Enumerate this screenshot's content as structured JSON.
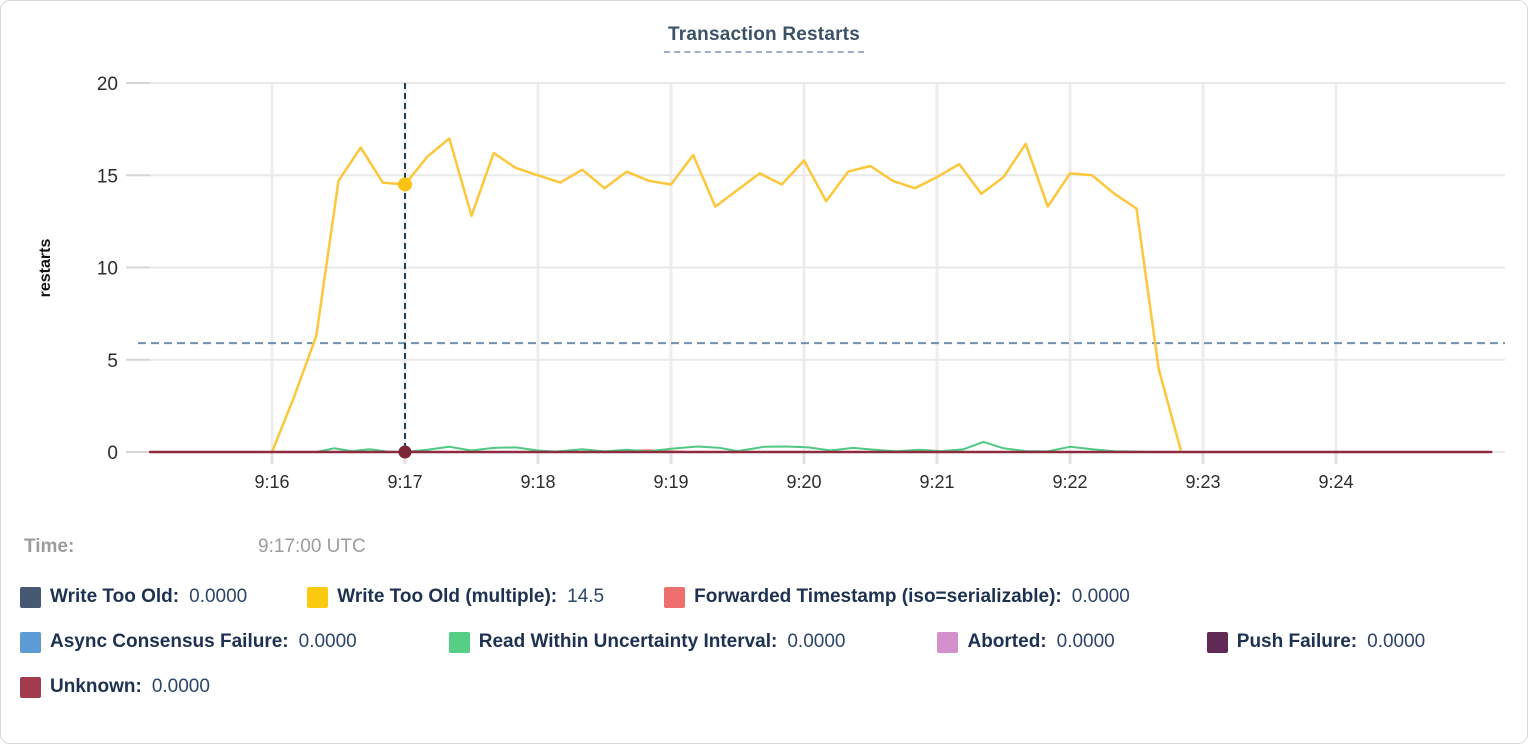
{
  "header": {
    "title": "Transaction Restarts"
  },
  "tooltip": {
    "time_label": "Time:",
    "time_value": "9:17:00 UTC"
  },
  "legend": {
    "rows": [
      [
        {
          "label": "Write Too Old:",
          "value": "0.0000",
          "color": "#475872"
        },
        {
          "label": "Write Too Old (multiple):",
          "value": "14.5",
          "color": "#fdca12"
        },
        {
          "label": "Forwarded Timestamp (iso=serializable):",
          "value": "0.0000",
          "color": "#ef6f6f"
        }
      ],
      [
        {
          "label": "Async Consensus Failure:",
          "value": "0.0000",
          "color": "#5c9bd3"
        },
        {
          "label": "Read Within Uncertainty Interval:",
          "value": "0.0000",
          "color": "#55ce86"
        },
        {
          "label": "Aborted:",
          "value": "0.0000",
          "color": "#d48fcd"
        },
        {
          "label": "Push Failure:",
          "value": "0.0000",
          "color": "#612a56"
        }
      ],
      [
        {
          "label": "Unknown:",
          "value": "0.0000",
          "color": "#a33b4f"
        }
      ]
    ]
  },
  "colors": {
    "title_text": "#3c5268",
    "axis_text": "#2d2d2d",
    "grid_horizontal": "#e9e9e9",
    "grid_vertical": "#ededed",
    "tick_stub": "#d6d6d6",
    "crosshair_vertical": "#1f4055",
    "crosshair_horizontal": "#7090b2",
    "legend_label": "#1d3150",
    "legend_value": "#2c4569",
    "time_text": "#9c9c9c"
  },
  "chart_data": {
    "type": "line",
    "title": "Transaction Restarts",
    "xlabel": "",
    "ylabel": "restarts",
    "ylim": [
      0,
      20
    ],
    "yticks": [
      0,
      5,
      10,
      15,
      20
    ],
    "x_unit": "seconds after 9:15:00 UTC",
    "x_window": [
      5,
      616
    ],
    "xticks": [
      {
        "label": "9:16",
        "t": 60
      },
      {
        "label": "9:17",
        "t": 120
      },
      {
        "label": "9:18",
        "t": 180
      },
      {
        "label": "9:19",
        "t": 240
      },
      {
        "label": "9:20",
        "t": 300
      },
      {
        "label": "9:21",
        "t": 360
      },
      {
        "label": "9:22",
        "t": 420
      },
      {
        "label": "9:23",
        "t": 480
      },
      {
        "label": "9:24",
        "t": 540
      }
    ],
    "grid": true,
    "legend_position": "bottom",
    "hover": {
      "t": 120,
      "time": "9:17:00 UTC",
      "horizontal_guide_value": 5.9
    },
    "series": [
      {
        "name": "Write Too Old",
        "color": "#475872",
        "width": 2,
        "values": [
          [
            60,
            0
          ],
          [
            470,
            0
          ]
        ]
      },
      {
        "name": "Write Too Old (multiple)",
        "color": "#fdc73b",
        "width": 2.5,
        "values": [
          [
            60,
            0
          ],
          [
            70,
            3
          ],
          [
            80,
            6.3
          ],
          [
            90,
            14.7
          ],
          [
            100,
            16.5
          ],
          [
            110,
            14.6
          ],
          [
            120,
            14.5
          ],
          [
            130,
            16
          ],
          [
            140,
            17
          ],
          [
            150,
            12.8
          ],
          [
            160,
            16.2
          ],
          [
            170,
            15.4
          ],
          [
            180,
            15
          ],
          [
            190,
            14.6
          ],
          [
            200,
            15.3
          ],
          [
            210,
            14.3
          ],
          [
            220,
            15.2
          ],
          [
            230,
            14.7
          ],
          [
            240,
            14.5
          ],
          [
            250,
            16.1
          ],
          [
            260,
            13.3
          ],
          [
            270,
            14.2
          ],
          [
            280,
            15.1
          ],
          [
            290,
            14.5
          ],
          [
            300,
            15.8
          ],
          [
            310,
            13.6
          ],
          [
            320,
            15.2
          ],
          [
            330,
            15.5
          ],
          [
            340,
            14.7
          ],
          [
            350,
            14.3
          ],
          [
            360,
            14.9
          ],
          [
            370,
            15.6
          ],
          [
            380,
            14
          ],
          [
            390,
            14.9
          ],
          [
            400,
            16.7
          ],
          [
            410,
            13.3
          ],
          [
            420,
            15.1
          ],
          [
            430,
            15
          ],
          [
            440,
            14
          ],
          [
            450,
            13.2
          ],
          [
            460,
            4.5
          ],
          [
            470,
            0.1
          ]
        ]
      },
      {
        "name": "Forwarded Timestamp (iso=serializable)",
        "color": "#ef6f6f",
        "width": 2,
        "values": [
          [
            80,
            0
          ],
          [
            215,
            0
          ],
          [
            223,
            0.08
          ],
          [
            230,
            0.1
          ],
          [
            238,
            0.04
          ],
          [
            248,
            0
          ],
          [
            460,
            0
          ]
        ]
      },
      {
        "name": "Async Consensus Failure",
        "color": "#5c9bd3",
        "width": 2,
        "values": [
          [
            60,
            0
          ],
          [
            470,
            0
          ]
        ]
      },
      {
        "name": "Read Within Uncertainty Interval",
        "color": "#50c983",
        "width": 2,
        "values": [
          [
            80,
            0
          ],
          [
            88,
            0.2
          ],
          [
            96,
            0.05
          ],
          [
            104,
            0.15
          ],
          [
            112,
            0.02
          ],
          [
            120,
            0
          ],
          [
            130,
            0.12
          ],
          [
            140,
            0.28
          ],
          [
            150,
            0.08
          ],
          [
            160,
            0.22
          ],
          [
            170,
            0.25
          ],
          [
            180,
            0.08
          ],
          [
            188,
            0.02
          ],
          [
            200,
            0.15
          ],
          [
            210,
            0.03
          ],
          [
            220,
            0.12
          ],
          [
            230,
            0.03
          ],
          [
            240,
            0.18
          ],
          [
            252,
            0.3
          ],
          [
            262,
            0.22
          ],
          [
            270,
            0.05
          ],
          [
            282,
            0.28
          ],
          [
            292,
            0.3
          ],
          [
            302,
            0.25
          ],
          [
            312,
            0.08
          ],
          [
            322,
            0.22
          ],
          [
            332,
            0.12
          ],
          [
            342,
            0.04
          ],
          [
            352,
            0.12
          ],
          [
            362,
            0.04
          ],
          [
            372,
            0.15
          ],
          [
            381,
            0.55
          ],
          [
            390,
            0.2
          ],
          [
            400,
            0.05
          ],
          [
            410,
            0.03
          ],
          [
            420,
            0.28
          ],
          [
            430,
            0.15
          ],
          [
            440,
            0.04
          ],
          [
            450,
            0.02
          ],
          [
            460,
            0
          ]
        ]
      },
      {
        "name": "Aborted",
        "color": "#d48fcd",
        "width": 2,
        "values": [
          [
            60,
            0
          ],
          [
            470,
            0
          ]
        ]
      },
      {
        "name": "Push Failure",
        "color": "#612a56",
        "width": 2,
        "values": [
          [
            60,
            0
          ],
          [
            470,
            0
          ]
        ]
      },
      {
        "name": "Unknown",
        "color": "#8e2b3e",
        "width": 2.5,
        "values": [
          [
            5,
            0
          ],
          [
            610,
            0
          ]
        ]
      }
    ],
    "markers": [
      {
        "series": "Write Too Old (multiple)",
        "t": 120,
        "value": 14.5,
        "color": "#fcc313",
        "r": 7
      },
      {
        "series": "Unknown",
        "t": 120,
        "value": 0,
        "color": "#7d2638",
        "r": 6.5
      }
    ]
  }
}
